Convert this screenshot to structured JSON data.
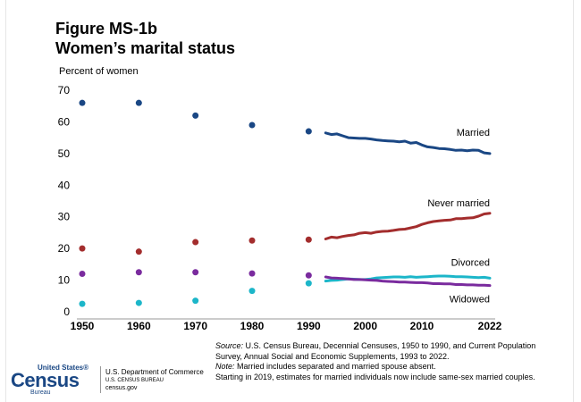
{
  "header": {
    "figure_number": "Figure MS-1b",
    "title": "Women’s marital status"
  },
  "chart_data": {
    "type": "scatter+line",
    "ylabel": "Percent of women",
    "xlabel": "",
    "ylim": [
      0,
      70
    ],
    "xlim": [
      1950,
      2022
    ],
    "y_ticks": [
      "0",
      "10",
      "20",
      "30",
      "40",
      "50",
      "60",
      "70"
    ],
    "x_ticks": [
      "1950",
      "1960",
      "1970",
      "1980",
      "1990",
      "2000",
      "2010",
      "2022"
    ],
    "grid": false,
    "series": [
      {
        "name": "Married",
        "color": "#1a4784",
        "points": [
          [
            1950,
            66
          ],
          [
            1960,
            66
          ],
          [
            1970,
            62
          ],
          [
            1980,
            59
          ],
          [
            1990,
            57
          ]
        ],
        "line": [
          [
            1993,
            56.5
          ],
          [
            1994,
            56
          ],
          [
            1995,
            56.2
          ],
          [
            1996,
            55.6
          ],
          [
            1997,
            55
          ],
          [
            1998,
            54.9
          ],
          [
            1999,
            54.8
          ],
          [
            2000,
            54.8
          ],
          [
            2001,
            54.6
          ],
          [
            2002,
            54.3
          ],
          [
            2003,
            54.1
          ],
          [
            2004,
            54
          ],
          [
            2005,
            53.9
          ],
          [
            2006,
            53.7
          ],
          [
            2007,
            53.9
          ],
          [
            2008,
            53.3
          ],
          [
            2009,
            53.5
          ],
          [
            2010,
            52.7
          ],
          [
            2011,
            52.1
          ],
          [
            2012,
            51.9
          ],
          [
            2013,
            51.6
          ],
          [
            2014,
            51.5
          ],
          [
            2015,
            51.3
          ],
          [
            2016,
            51
          ],
          [
            2017,
            51.1
          ],
          [
            2018,
            50.9
          ],
          [
            2019,
            51.1
          ],
          [
            2020,
            51.0
          ],
          [
            2021,
            50.2
          ],
          [
            2022,
            50.0
          ]
        ]
      },
      {
        "name": "Never married",
        "color": "#a32d2d",
        "points": [
          [
            1950,
            20
          ],
          [
            1960,
            19
          ],
          [
            1970,
            22
          ],
          [
            1980,
            22.5
          ],
          [
            1990,
            22.8
          ]
        ],
        "line": [
          [
            1993,
            23
          ],
          [
            1994,
            23.6
          ],
          [
            1995,
            23.4
          ],
          [
            1996,
            23.8
          ],
          [
            1997,
            24.1
          ],
          [
            1998,
            24.3
          ],
          [
            1999,
            24.8
          ],
          [
            2000,
            25
          ],
          [
            2001,
            24.8
          ],
          [
            2002,
            25.2
          ],
          [
            2003,
            25.4
          ],
          [
            2004,
            25.5
          ],
          [
            2005,
            25.7
          ],
          [
            2006,
            26
          ],
          [
            2007,
            26.1
          ],
          [
            2008,
            26.5
          ],
          [
            2009,
            26.9
          ],
          [
            2010,
            27.6
          ],
          [
            2011,
            28.1
          ],
          [
            2012,
            28.5
          ],
          [
            2013,
            28.7
          ],
          [
            2014,
            28.9
          ],
          [
            2015,
            29
          ],
          [
            2016,
            29.4
          ],
          [
            2017,
            29.4
          ],
          [
            2018,
            29.6
          ],
          [
            2019,
            29.7
          ],
          [
            2020,
            30.2
          ],
          [
            2021,
            30.9
          ],
          [
            2022,
            31.1
          ]
        ]
      },
      {
        "name": "Divorced",
        "color": "#1cb6c9",
        "points": [
          [
            1950,
            2.5
          ],
          [
            1960,
            2.8
          ],
          [
            1970,
            3.5
          ],
          [
            1980,
            6.6
          ],
          [
            1990,
            9
          ]
        ],
        "line": [
          [
            1993,
            9.7
          ],
          [
            1994,
            9.9
          ],
          [
            1995,
            10
          ],
          [
            1996,
            10.2
          ],
          [
            1997,
            10.4
          ],
          [
            1998,
            10.3
          ],
          [
            1999,
            10.2
          ],
          [
            2000,
            10.2
          ],
          [
            2001,
            10.4
          ],
          [
            2002,
            10.7
          ],
          [
            2003,
            10.8
          ],
          [
            2004,
            10.9
          ],
          [
            2005,
            11
          ],
          [
            2006,
            11
          ],
          [
            2007,
            10.9
          ],
          [
            2008,
            11.1
          ],
          [
            2009,
            10.9
          ],
          [
            2010,
            11
          ],
          [
            2011,
            11.1
          ],
          [
            2012,
            11.2
          ],
          [
            2013,
            11.3
          ],
          [
            2014,
            11.3
          ],
          [
            2015,
            11.2
          ],
          [
            2016,
            11.1
          ],
          [
            2017,
            11.1
          ],
          [
            2018,
            11
          ],
          [
            2019,
            10.9
          ],
          [
            2020,
            10.8
          ],
          [
            2021,
            10.9
          ],
          [
            2022,
            10.6
          ]
        ]
      },
      {
        "name": "Widowed",
        "color": "#7a2b9e",
        "points": [
          [
            1950,
            12
          ],
          [
            1960,
            12.5
          ],
          [
            1970,
            12.5
          ],
          [
            1980,
            12.1
          ],
          [
            1990,
            11.5
          ]
        ],
        "line": [
          [
            1993,
            11
          ],
          [
            1994,
            10.7
          ],
          [
            1995,
            10.6
          ],
          [
            1996,
            10.5
          ],
          [
            1997,
            10.4
          ],
          [
            1998,
            10.2
          ],
          [
            1999,
            10.2
          ],
          [
            2000,
            10.1
          ],
          [
            2001,
            10
          ],
          [
            2002,
            9.9
          ],
          [
            2003,
            9.7
          ],
          [
            2004,
            9.6
          ],
          [
            2005,
            9.5
          ],
          [
            2006,
            9.4
          ],
          [
            2007,
            9.4
          ],
          [
            2008,
            9.3
          ],
          [
            2009,
            9.2
          ],
          [
            2010,
            9.2
          ],
          [
            2011,
            9.1
          ],
          [
            2012,
            8.9
          ],
          [
            2013,
            8.9
          ],
          [
            2014,
            8.8
          ],
          [
            2015,
            8.8
          ],
          [
            2016,
            8.6
          ],
          [
            2017,
            8.6
          ],
          [
            2018,
            8.5
          ],
          [
            2019,
            8.5
          ],
          [
            2020,
            8.4
          ],
          [
            2021,
            8.4
          ],
          [
            2022,
            8.3
          ]
        ]
      }
    ],
    "labels": {
      "married": "Married",
      "never_married": "Never married",
      "divorced": "Divorced",
      "widowed": "Widowed"
    }
  },
  "source": {
    "source_label": "Source:",
    "source_text": " U.S. Census Bureau, Decennial Censuses, 1950 to 1990, and Current Population Survey, Annual Social and Economic Supplements, 1993 to 2022.",
    "note_label": "Note:",
    "note_text": " Married includes separated and married spouse absent.",
    "extra_text": "Starting in 2019, estimates for married individuals now include same-sex married couples."
  },
  "footer": {
    "logo_top": "United States®",
    "logo_main": "Census",
    "logo_bottom": "Bureau",
    "dept_line1": "U.S. Department of Commerce",
    "dept_line2": "U.S. CENSUS BUREAU",
    "dept_line3": "census.gov"
  }
}
